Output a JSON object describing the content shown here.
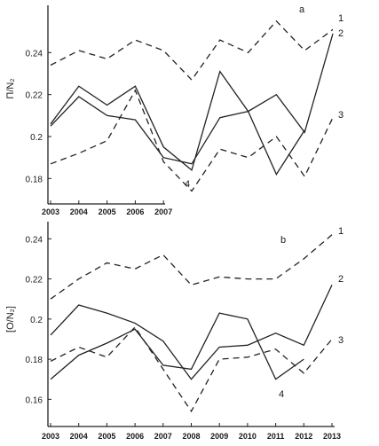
{
  "chart_data": [
    {
      "type": "line",
      "panel_label": "a",
      "x": [
        2003,
        2004,
        2005,
        2006,
        2007,
        2008,
        2009,
        2010,
        2011,
        2012,
        2013
      ],
      "x_tick_labels": [
        "2003",
        "2004",
        "2005",
        "2006",
        "2007"
      ],
      "ylim": [
        0.17,
        0.26
      ],
      "yticks": [
        0.18,
        0.2,
        0.22,
        0.24
      ],
      "ytick_labels": [
        "0.18",
        "0.2",
        "0.22",
        "0.24"
      ],
      "ylabel": "Π/Ν₂",
      "grid": false,
      "series": [
        {
          "name": "1",
          "dash": true,
          "values": [
            0.234,
            0.241,
            0.237,
            0.246,
            0.241,
            0.227,
            0.246,
            0.24,
            0.255,
            0.241,
            0.251
          ]
        },
        {
          "name": "2",
          "dash": false,
          "values": [
            0.205,
            0.219,
            0.21,
            0.208,
            0.19,
            0.187,
            0.209,
            0.212,
            0.22,
            0.202,
            0.249
          ]
        },
        {
          "name": "3",
          "dash": true,
          "values": [
            0.187,
            0.192,
            0.198,
            0.222,
            0.188,
            0.174,
            0.194,
            0.19,
            0.2,
            0.181,
            0.209
          ]
        },
        {
          "name": "4",
          "dash": false,
          "values": [
            0.206,
            0.224,
            0.215,
            0.224,
            0.195,
            0.184,
            0.231,
            0.212,
            0.182,
            0.203,
            null
          ]
        }
      ]
    },
    {
      "type": "line",
      "panel_label": "b",
      "x": [
        2003,
        2004,
        2005,
        2006,
        2007,
        2008,
        2009,
        2010,
        2011,
        2012,
        2013
      ],
      "x_tick_labels": [
        "2003",
        "2004",
        "2005",
        "2006",
        "2007",
        "2008",
        "2009",
        "2010",
        "2011",
        "2012",
        "2013"
      ],
      "ylim": [
        0.15,
        0.245
      ],
      "yticks": [
        0.16,
        0.18,
        0.2,
        0.22,
        0.24
      ],
      "ytick_labels": [
        "0.16",
        "0.18",
        "0.2",
        "0.22",
        "0.24"
      ],
      "ylabel": "[O/N₂]",
      "grid": false,
      "series": [
        {
          "name": "1",
          "dash": true,
          "values": [
            0.21,
            0.22,
            0.228,
            0.225,
            0.232,
            0.217,
            0.221,
            0.22,
            0.22,
            0.23,
            0.242
          ]
        },
        {
          "name": "2",
          "dash": false,
          "values": [
            0.192,
            0.207,
            0.203,
            0.198,
            0.189,
            0.17,
            0.186,
            0.187,
            0.193,
            0.187,
            0.217
          ]
        },
        {
          "name": "3",
          "dash": true,
          "values": [
            0.179,
            0.186,
            0.181,
            0.196,
            0.175,
            0.154,
            0.18,
            0.181,
            0.185,
            0.173,
            0.19
          ]
        },
        {
          "name": "4",
          "dash": false,
          "values": [
            0.17,
            0.182,
            0.188,
            0.195,
            0.177,
            0.175,
            0.203,
            0.2,
            0.17,
            0.18,
            null
          ]
        }
      ]
    }
  ]
}
